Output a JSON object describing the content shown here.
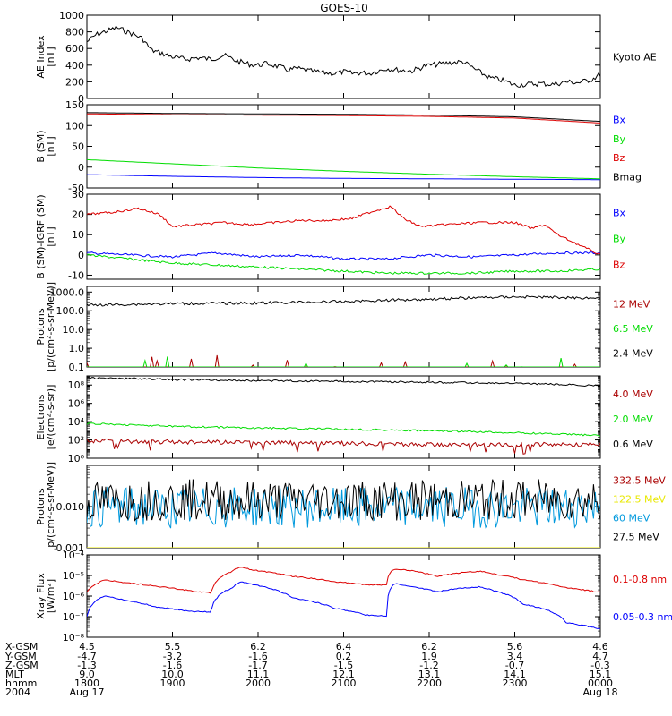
{
  "title": "GOES-10",
  "colors": {
    "black": "#000000",
    "blue": "#0000ff",
    "green": "#00dd00",
    "red": "#dd0000",
    "darkred": "#aa0000",
    "yellow": "#e8e800",
    "cyan": "#0099dd"
  },
  "chart_data": [
    {
      "type": "line",
      "ylabel": [
        "AE Index",
        "[nT]"
      ],
      "ylim": [
        0,
        1000
      ],
      "ticks": [
        {
          "v": 0,
          "label": "0"
        },
        {
          "v": 200,
          "label": "200"
        },
        {
          "v": 400,
          "label": "400"
        },
        {
          "v": 600,
          "label": "600"
        },
        {
          "v": 800,
          "label": "800"
        },
        {
          "v": 1000,
          "label": "1000"
        }
      ],
      "series": [
        {
          "name": "Kyoto AE",
          "color": "#000000",
          "x": [
            0,
            0.1,
            0.2,
            0.35,
            0.5,
            0.65,
            0.75,
            0.85,
            1.0,
            1.15,
            1.3,
            1.45,
            1.6,
            1.75,
            1.9,
            2.0,
            2.1,
            2.25,
            2.35,
            2.45,
            2.6,
            2.75,
            2.9,
            3.0,
            3.1,
            3.2,
            3.3,
            3.4,
            3.5,
            3.65,
            3.8,
            3.95,
            4.1,
            4.25,
            4.4,
            4.55,
            4.7,
            4.85,
            5.0,
            5.15,
            5.3,
            5.45,
            5.6,
            5.75,
            5.9,
            6.0
          ],
          "y": [
            680,
            760,
            800,
            850,
            790,
            720,
            580,
            550,
            500,
            470,
            490,
            470,
            520,
            450,
            410,
            400,
            420,
            380,
            340,
            360,
            330,
            310,
            300,
            320,
            300,
            310,
            300,
            330,
            360,
            340,
            330,
            390,
            410,
            430,
            440,
            340,
            250,
            220,
            160,
            170,
            180,
            170,
            200,
            190,
            230,
            290
          ]
        }
      ]
    },
    {
      "type": "line",
      "ylabel": [
        "B (SM)",
        "[nT]"
      ],
      "ylim": [
        -50,
        150
      ],
      "ticks": [
        {
          "v": -50,
          "label": "-50"
        },
        {
          "v": 0,
          "label": "0"
        },
        {
          "v": 50,
          "label": "50"
        },
        {
          "v": 100,
          "label": "100"
        },
        {
          "v": 150,
          "label": "150"
        }
      ],
      "series": [
        {
          "name": "Bx",
          "color": "#0000ff",
          "x": [
            0,
            1,
            2,
            3,
            4,
            5,
            6
          ],
          "y": [
            -18,
            -22,
            -25,
            -27,
            -28,
            -29,
            -30
          ]
        },
        {
          "name": "By",
          "color": "#00dd00",
          "x": [
            0,
            1,
            2,
            3,
            4,
            5,
            6
          ],
          "y": [
            18,
            8,
            -2,
            -10,
            -17,
            -23,
            -28
          ]
        },
        {
          "name": "Bz",
          "color": "#dd0000",
          "x": [
            0,
            1,
            2,
            3,
            4,
            5,
            6
          ],
          "y": [
            128,
            126,
            125,
            124,
            122,
            118,
            106
          ]
        },
        {
          "name": "Bmag",
          "color": "#000000",
          "x": [
            0,
            1,
            2,
            3,
            4,
            5,
            6
          ],
          "y": [
            131,
            129,
            128,
            127,
            125,
            121,
            110
          ]
        }
      ]
    },
    {
      "type": "line",
      "ylabel": [
        "B (SM)-IGRF (SM)",
        "[nT]"
      ],
      "ylim": [
        -12,
        30
      ],
      "ticks": [
        {
          "v": -10,
          "label": "-10"
        },
        {
          "v": 0,
          "label": "0"
        },
        {
          "v": 10,
          "label": "10"
        },
        {
          "v": 20,
          "label": "20"
        },
        {
          "v": 30,
          "label": "30"
        }
      ],
      "series": [
        {
          "name": "Bx",
          "color": "#0000ff",
          "x": [
            0,
            0.5,
            1,
            1.5,
            2,
            2.5,
            3,
            3.5,
            4,
            4.5,
            5,
            5.5,
            6
          ],
          "y": [
            1,
            0,
            -1,
            1,
            -1,
            0,
            -2,
            -2,
            0,
            -1,
            0,
            1,
            1
          ]
        },
        {
          "name": "By",
          "color": "#00dd00",
          "x": [
            0,
            0.5,
            1,
            1.5,
            2,
            2.5,
            3,
            3.5,
            4,
            4.5,
            5,
            5.5,
            6
          ],
          "y": [
            0,
            -2,
            -4,
            -5,
            -6,
            -7,
            -8,
            -9,
            -9,
            -9,
            -8,
            -8,
            -7
          ]
        },
        {
          "name": "Bz",
          "color": "#dd0000",
          "x": [
            0,
            0.3,
            0.6,
            0.85,
            1.0,
            1.3,
            1.6,
            1.9,
            2.2,
            2.5,
            2.8,
            3.1,
            3.3,
            3.55,
            3.7,
            3.9,
            4.2,
            4.6,
            5.0,
            5.2,
            5.35,
            5.5,
            5.7,
            5.9,
            6.0
          ],
          "y": [
            20,
            21,
            23,
            20,
            14,
            15,
            16,
            15,
            16,
            17,
            17,
            18,
            21,
            24,
            18,
            14,
            15,
            16,
            16,
            13,
            15,
            10,
            6,
            2,
            0
          ]
        }
      ]
    },
    {
      "type": "line",
      "log": true,
      "ylabel": [
        "Protons",
        "[p/(cm²-s-sr-MeV)]"
      ],
      "ylim": [
        0.1,
        2000
      ],
      "ticks": [
        {
          "v": 0.1,
          "label": "0.1"
        },
        {
          "v": 1,
          "label": "1.0"
        },
        {
          "v": 10,
          "label": "10.0"
        },
        {
          "v": 100,
          "label": "100.0"
        },
        {
          "v": 1000,
          "label": "1000.0"
        }
      ],
      "series": [
        {
          "name": "12 MeV",
          "color": "#aa0000",
          "x": [
            0,
            1,
            2,
            3,
            4,
            5,
            6
          ],
          "y": [
            0.1,
            0.1,
            0.1,
            0.1,
            0.1,
            0.1,
            0.1
          ]
        },
        {
          "name": "6.5 MeV",
          "color": "#00dd00",
          "x": [
            0,
            1,
            2,
            3,
            4,
            5,
            6
          ],
          "y": [
            0.1,
            0.1,
            0.1,
            0.1,
            0.1,
            0.1,
            0.1
          ]
        },
        {
          "name": "2.4 MeV",
          "color": "#000000",
          "x": [
            0,
            1,
            2,
            3,
            4,
            5,
            6
          ],
          "y": [
            200,
            240,
            260,
            310,
            420,
            560,
            480
          ]
        }
      ]
    },
    {
      "type": "line",
      "log": true,
      "ylabel": [
        "Electrons",
        "[e/(cm²-s-sr)]"
      ],
      "ylim": [
        1,
        1000000000.0
      ],
      "ticks": [
        {
          "v": 1,
          "label": "10⁰"
        },
        {
          "v": 100,
          "label": "10²"
        },
        {
          "v": 10000,
          "label": "10⁴"
        },
        {
          "v": 1000000,
          "label": "10⁶"
        },
        {
          "v": 100000000,
          "label": "10⁸"
        }
      ],
      "series": [
        {
          "name": "4.0 MeV",
          "color": "#aa0000",
          "x": [
            0,
            1,
            2,
            3,
            4,
            5,
            6
          ],
          "y": [
            80,
            60,
            50,
            40,
            30,
            30,
            30
          ]
        },
        {
          "name": "2.0 MeV",
          "color": "#00dd00",
          "x": [
            0,
            1,
            2,
            3,
            4,
            5,
            6
          ],
          "y": [
            6000,
            3000,
            2000,
            1500,
            1000,
            600,
            300
          ]
        },
        {
          "name": "0.6 MeV",
          "color": "#000000",
          "x": [
            0,
            1,
            2,
            3,
            4,
            5,
            6
          ],
          "y": [
            600000000,
            400000000,
            300000000,
            250000000,
            200000000,
            150000000,
            80000000
          ]
        }
      ]
    },
    {
      "type": "line",
      "log": true,
      "ylabel": [
        "Protons",
        "[p/(cm²-s-sr-MeV)]"
      ],
      "ylim": [
        0.001,
        0.1
      ],
      "ticks": [
        {
          "v": 0.001,
          "label": "0.001"
        },
        {
          "v": 0.01,
          "label": "0.010"
        }
      ],
      "series": [
        {
          "name": "332.5 MeV",
          "color": "#aa0000",
          "x": [
            0,
            6
          ],
          "y": [
            0.001,
            0.001
          ]
        },
        {
          "name": "122.5 MeV",
          "color": "#e8e800",
          "x": [
            0,
            6
          ],
          "y": [
            0.001,
            0.001
          ]
        },
        {
          "name": "60 MeV",
          "color": "#0099dd",
          "x": [
            0,
            1,
            2,
            3,
            4,
            5,
            6
          ],
          "y": [
            0.01,
            0.009,
            0.01,
            0.009,
            0.01,
            0.009,
            0.01
          ]
        },
        {
          "name": "27.5 MeV",
          "color": "#000000",
          "x": [
            0,
            1,
            2,
            3,
            4,
            5,
            6
          ],
          "y": [
            0.013,
            0.015,
            0.014,
            0.015,
            0.014,
            0.015,
            0.014
          ]
        }
      ]
    },
    {
      "type": "line",
      "log": true,
      "ylabel": [
        "Xray Flux",
        "[W/m²]"
      ],
      "ylim": [
        1e-08,
        0.0001
      ],
      "ticks": [
        {
          "v": 1e-08,
          "label": "10⁻⁸"
        },
        {
          "v": 1e-07,
          "label": "10⁻⁷"
        },
        {
          "v": 1e-06,
          "label": "10⁻⁶"
        },
        {
          "v": 1e-05,
          "label": "10⁻⁵"
        },
        {
          "v": 0.0001,
          "label": "10⁻⁴"
        }
      ],
      "series": [
        {
          "name": "0.1-0.8 nm",
          "color": "#dd0000",
          "x": [
            0,
            0.2,
            0.45,
            0.8,
            1.2,
            1.45,
            1.7,
            1.75,
            1.8,
            1.95,
            2.4,
            2.9,
            3.25,
            3.5,
            3.55,
            3.6,
            3.75,
            4.1,
            4.4,
            4.6,
            4.75,
            5.1,
            5.6,
            6.0
          ],
          "y": [
            1.5e-06,
            6e-06,
            4.5e-06,
            3e-06,
            1.8e-06,
            1.4e-06,
            1.6e-05,
            2.2e-05,
            2.5e-05,
            1.8e-05,
            9e-06,
            5e-06,
            3.5e-06,
            3.5e-06,
            1.5e-05,
            2e-05,
            1.8e-05,
            9e-06,
            1.4e-05,
            1.6e-05,
            1.2e-05,
            6e-06,
            2.5e-06,
            1.5e-06
          ]
        },
        {
          "name": "0.05-0.3 nm",
          "color": "#0000ff",
          "x": [
            0,
            0.2,
            0.45,
            0.8,
            1.2,
            1.45,
            1.7,
            1.75,
            1.8,
            1.95,
            2.4,
            2.9,
            3.25,
            3.5,
            3.55,
            3.6,
            3.75,
            4.1,
            4.4,
            4.6,
            4.75,
            5.1,
            5.6,
            6.0
          ],
          "y": [
            1e-07,
            1e-06,
            6e-07,
            3e-07,
            1.8e-07,
            1.7e-07,
            2.5e-06,
            4e-06,
            5e-06,
            3.5e-06,
            8e-07,
            2.5e-07,
            1.2e-07,
            1.1e-07,
            2.5e-06,
            4e-06,
            3e-06,
            1.6e-06,
            2.5e-06,
            2.8e-06,
            1.8e-06,
            4e-07,
            5e-08,
            2.5e-08
          ]
        }
      ]
    }
  ],
  "xaxis": {
    "tick_hours": [
      0,
      1,
      2,
      3,
      4,
      5,
      6
    ],
    "row_labels": [
      "X-GSM",
      "Y-GSM",
      "Z-GSM",
      "MLT",
      "hhmm",
      "2004"
    ],
    "columns": [
      [
        "4.5",
        "-4.7",
        "-1.3",
        "9.0",
        "1800",
        "Aug 17"
      ],
      [
        "5.5",
        "-3.2",
        "-1.6",
        "10.0",
        "1900",
        ""
      ],
      [
        "6.2",
        "-1.6",
        "-1.7",
        "11.1",
        "2000",
        ""
      ],
      [
        "6.4",
        "0.2",
        "-1.5",
        "12.1",
        "2100",
        ""
      ],
      [
        "6.2",
        "1.9",
        "-1.2",
        "13.1",
        "2200",
        ""
      ],
      [
        "5.6",
        "3.4",
        "-0.7",
        "14.1",
        "2300",
        ""
      ],
      [
        "4.6",
        "4.7",
        "-0.3",
        "15.1",
        "0000",
        "Aug 18"
      ]
    ]
  }
}
